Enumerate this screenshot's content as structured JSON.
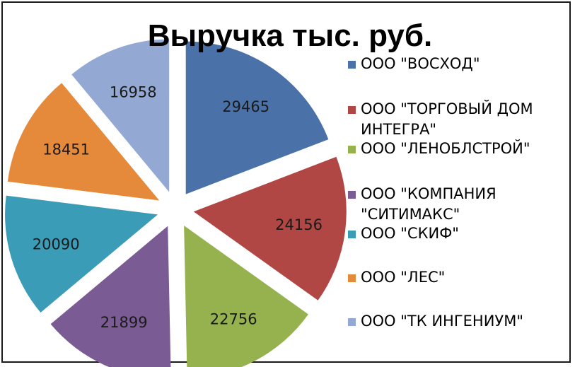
{
  "chart_data": {
    "type": "pie",
    "title": "Выручка тыс. руб.",
    "categories": [
      "ООО \"ВОСХОД\"",
      "ООО \"ТОРГОВЫЙ ДОМ ИНТЕГРА\"",
      "ООО \"ЛЕНОБЛСТРОЙ\"",
      "ООО \"КОМПАНИЯ \"СИТИМАКС\"",
      "ООО \"СКИФ\"",
      "ООО \"ЛЕС\"",
      "ООО \"ТК ИНГЕНИУМ\""
    ],
    "legend_lines": [
      [
        "ООО \"ВОСХОД\""
      ],
      [
        "ООО \"ТОРГОВЫЙ ДОМ",
        "ИНТЕГРА\""
      ],
      [
        "ООО \"ЛЕНОБЛСТРОЙ\""
      ],
      [
        "ООО \"КОМПАНИЯ",
        "\"СИТИМАКС\""
      ],
      [
        "ООО \"СКИФ\""
      ],
      [
        "ООО \"ЛЕС\""
      ],
      [
        "ООО \"ТК ИНГЕНИУМ\""
      ]
    ],
    "values": [
      29465,
      24156,
      22756,
      21899,
      20090,
      18451,
      16958
    ],
    "colors": [
      "#4a72a8",
      "#b04744",
      "#95b24f",
      "#7a5b94",
      "#3a9cb6",
      "#e58a3a",
      "#93a9d3"
    ],
    "exploded": true,
    "legend_position": "right"
  }
}
